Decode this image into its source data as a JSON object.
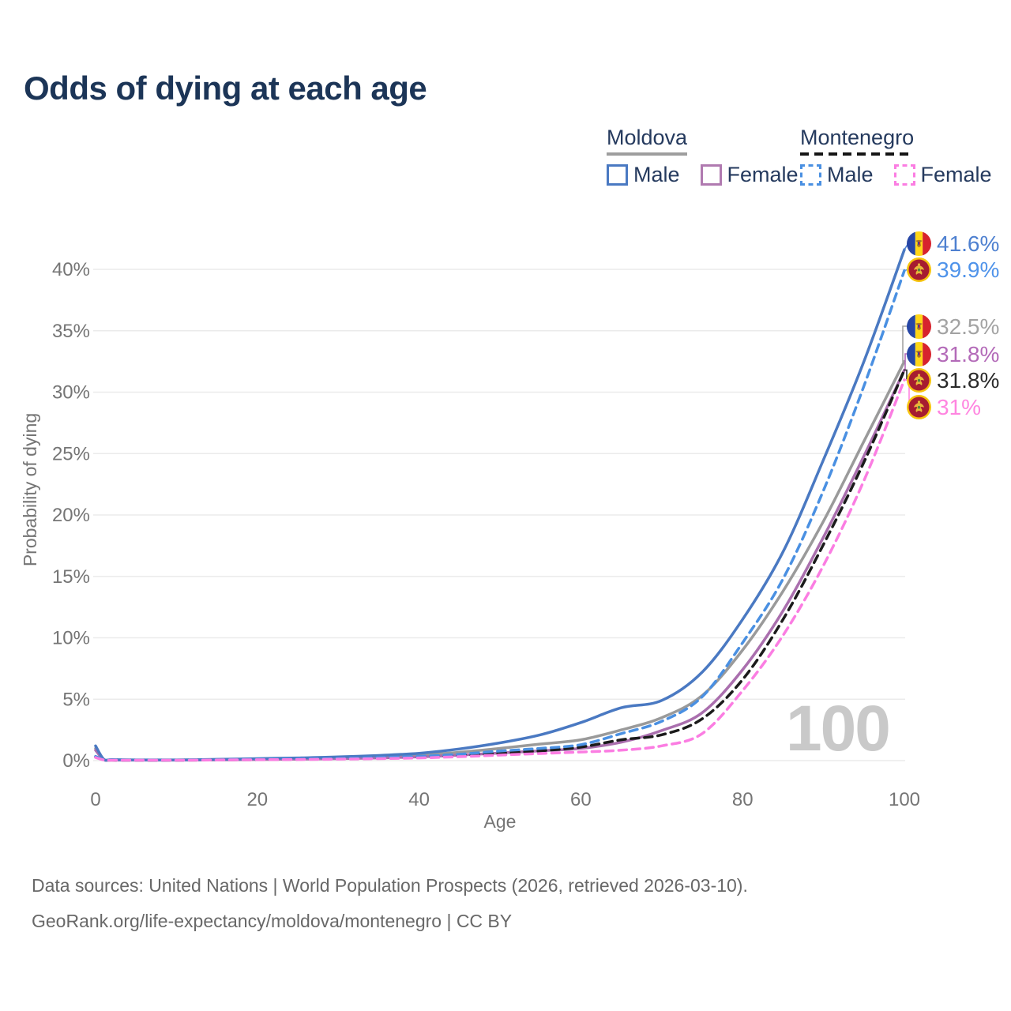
{
  "title": "Odds of dying at each age",
  "legend": {
    "groups": [
      {
        "name": "Moldova",
        "line_style": "solid",
        "line_color": "#9e9e9e",
        "items": [
          {
            "label": "Male",
            "color": "#4a79c2",
            "style": "solid"
          },
          {
            "label": "Female",
            "color": "#b07ab0",
            "style": "solid"
          }
        ]
      },
      {
        "name": "Montenegro",
        "line_style": "dashed",
        "line_color": "#151515",
        "items": [
          {
            "label": "Male",
            "color": "#4a90e2",
            "style": "dashed"
          },
          {
            "label": "Female",
            "color": "#fb7de2",
            "style": "dashed"
          }
        ]
      }
    ]
  },
  "chart_data": {
    "type": "line",
    "title": "Odds of dying at each age",
    "xlabel": "Age",
    "ylabel": "Probability of dying",
    "xlim": [
      0,
      100
    ],
    "ylim_percent": [
      0,
      42
    ],
    "x_ticks": [
      0,
      20,
      40,
      60,
      80,
      100
    ],
    "y_tick_labels": [
      "0%",
      "5%",
      "10%",
      "15%",
      "20%",
      "25%",
      "30%",
      "35%",
      "40%"
    ],
    "y_tick_values_percent": [
      0,
      5,
      10,
      15,
      20,
      25,
      30,
      35,
      40
    ],
    "grid": "horizontal",
    "legend_position": "top-right",
    "ages": [
      0,
      1,
      2,
      5,
      10,
      15,
      20,
      25,
      30,
      35,
      40,
      45,
      50,
      55,
      60,
      65,
      70,
      75,
      80,
      85,
      90,
      95,
      100
    ],
    "series": [
      {
        "name": "Moldova Both sexes",
        "country": "moldova",
        "style": "solid",
        "color": "#9a9a9a",
        "end_value_percent": 32.5,
        "values_percent": [
          1.0,
          0.1,
          0.06,
          0.05,
          0.05,
          0.08,
          0.12,
          0.16,
          0.22,
          0.3,
          0.45,
          0.68,
          1.0,
          1.35,
          1.7,
          2.5,
          3.5,
          5.3,
          9.0,
          13.8,
          19.5,
          26.0,
          32.5
        ]
      },
      {
        "name": "Moldova Female",
        "country": "moldova",
        "style": "solid",
        "color": "#aa6fae",
        "end_value_percent": 31.8,
        "values_percent": [
          0.85,
          0.09,
          0.05,
          0.04,
          0.04,
          0.06,
          0.09,
          0.12,
          0.16,
          0.22,
          0.3,
          0.45,
          0.62,
          0.8,
          1.0,
          1.5,
          2.45,
          3.9,
          7.4,
          12.2,
          18.2,
          24.8,
          31.8
        ]
      },
      {
        "name": "Moldova Male",
        "country": "moldova",
        "style": "solid",
        "color": "#4a79c2",
        "end_value_percent": 41.6,
        "values_percent": [
          1.2,
          0.12,
          0.08,
          0.06,
          0.06,
          0.1,
          0.16,
          0.22,
          0.3,
          0.42,
          0.6,
          0.95,
          1.45,
          2.1,
          3.1,
          4.3,
          4.9,
          7.2,
          11.5,
          17.0,
          24.5,
          32.5,
          41.6
        ]
      },
      {
        "name": "Montenegro Both sexes",
        "country": "montenegro",
        "style": "dashed",
        "color": "#1b1b1b",
        "end_value_percent": 31.8,
        "values_percent": [
          0.3,
          0.07,
          0.04,
          0.03,
          0.03,
          0.06,
          0.08,
          0.11,
          0.15,
          0.2,
          0.28,
          0.42,
          0.6,
          0.8,
          1.1,
          1.7,
          2.1,
          3.4,
          6.6,
          11.5,
          17.6,
          24.3,
          31.8
        ]
      },
      {
        "name": "Montenegro Male",
        "country": "montenegro",
        "style": "dashed",
        "color": "#4a90e2",
        "end_value_percent": 39.9,
        "values_percent": [
          0.35,
          0.08,
          0.05,
          0.04,
          0.04,
          0.07,
          0.1,
          0.14,
          0.18,
          0.25,
          0.35,
          0.52,
          0.78,
          1.0,
          1.3,
          2.2,
          3.2,
          5.2,
          9.6,
          14.8,
          22.0,
          30.5,
          39.9
        ]
      },
      {
        "name": "Montenegro Female",
        "country": "montenegro",
        "style": "dashed",
        "color": "#fb7de2",
        "end_value_percent": 31.0,
        "values_percent": [
          0.25,
          0.06,
          0.03,
          0.03,
          0.03,
          0.05,
          0.07,
          0.09,
          0.12,
          0.16,
          0.22,
          0.32,
          0.45,
          0.58,
          0.7,
          0.85,
          1.2,
          2.2,
          5.7,
          10.2,
          15.9,
          22.8,
          31.0
        ]
      }
    ]
  },
  "annotations": [
    {
      "country": "moldova",
      "series": "Moldova Male",
      "value_label": "41.6%",
      "value_percent": 41.6,
      "color": "#4e80d0"
    },
    {
      "country": "montenegro",
      "series": "Montenegro Male",
      "value_label": "39.9%",
      "value_percent": 39.9,
      "color": "#4f93ea"
    },
    {
      "country": "moldova",
      "series": "Moldova Both sexes",
      "value_label": "32.5%",
      "value_percent": 32.5,
      "color": "#a3a3a3"
    },
    {
      "country": "moldova",
      "series": "Moldova Female",
      "value_label": "31.8%",
      "value_percent": 31.8,
      "color": "#b36ab8"
    },
    {
      "country": "montenegro",
      "series": "Montenegro Both sexes",
      "value_label": "31.8%",
      "value_percent": 31.8,
      "color": "#2a2a2a"
    },
    {
      "country": "montenegro",
      "series": "Montenegro Female",
      "value_label": "31%",
      "value_percent": 31.0,
      "color": "#ff85e0"
    }
  ],
  "watermark": "100",
  "footer": {
    "line1": "Data sources: United Nations | World Population Prospects (2026, retrieved 2026-03-10).",
    "line2": "GeoRank.org/life-expectancy/moldova/montenegro | CC BY"
  },
  "colors": {
    "title": "#1c3557",
    "axis_text": "#757575",
    "gridline": "#ebebeb",
    "watermark": "#c9c9c9",
    "footer_text": "#686868"
  }
}
